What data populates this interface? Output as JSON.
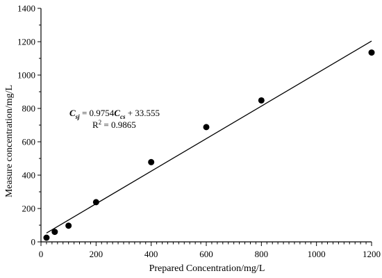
{
  "chart_data": {
    "type": "scatter",
    "xlabel": "Prepared Concentration/mg/L",
    "ylabel": "Measure concentration/mg/L",
    "xlim": [
      0,
      1200
    ],
    "ylim": [
      0,
      1400
    ],
    "x_ticks": [
      0,
      200,
      400,
      600,
      800,
      1000,
      1200
    ],
    "y_ticks": [
      0,
      200,
      400,
      600,
      800,
      1000,
      1200,
      1400
    ],
    "grid": false,
    "points": {
      "x": [
        20,
        50,
        100,
        200,
        400,
        600,
        800,
        1200
      ],
      "y": [
        25,
        60,
        97,
        238,
        478,
        688,
        848,
        1135
      ]
    },
    "fit": {
      "slope": 0.9754,
      "intercept": 33.555,
      "x_range": [
        20,
        1200
      ],
      "equation": {
        "lhs_var": "C",
        "lhs_sub": "sj",
        "eq_sign": " = 0.9754",
        "rhs_var": "C",
        "rhs_sub": "cs",
        "rhs_const": " + 33.555"
      },
      "r2": {
        "prefix": "R",
        "sup": "2",
        "value": " = 0.9865"
      }
    }
  }
}
